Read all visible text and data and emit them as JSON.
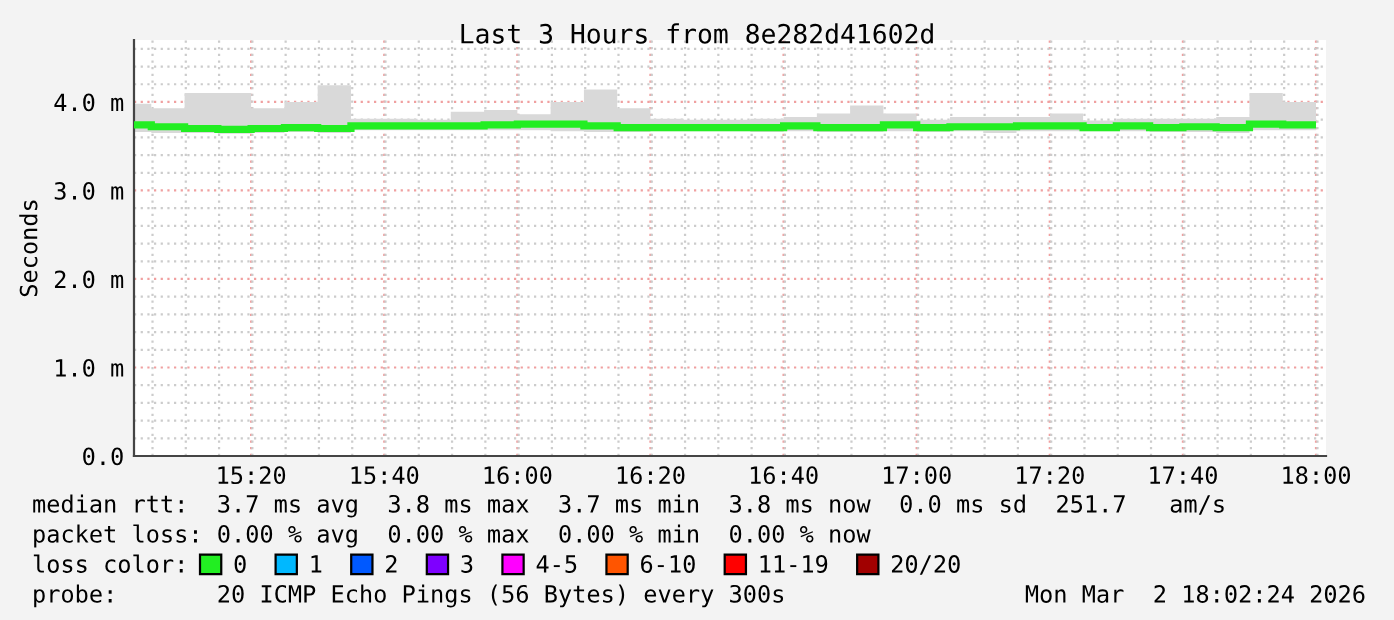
{
  "chart_data": {
    "type": "step",
    "title": "Last 3 Hours from 8e282d41602d",
    "ylabel": "Seconds",
    "x": [
      15.0833,
      15.1667,
      15.25,
      15.3333,
      15.4167,
      15.5,
      15.5833,
      15.6667,
      15.75,
      15.8333,
      15.9167,
      16.0,
      16.0833,
      16.1667,
      16.25,
      16.3333,
      16.4167,
      16.5,
      16.5833,
      16.6667,
      16.75,
      16.8333,
      16.9167,
      17.0,
      17.0833,
      17.1667,
      17.25,
      17.3333,
      17.4167,
      17.5,
      17.5833,
      17.6667,
      17.75,
      17.8333,
      17.9167,
      18.0
    ],
    "series": [
      {
        "name": "0",
        "color": "#22ee22",
        "values": [
          3.74,
          3.72,
          3.7,
          3.69,
          3.7,
          3.71,
          3.7,
          3.73,
          3.73,
          3.73,
          3.73,
          3.74,
          3.75,
          3.75,
          3.73,
          3.71,
          3.71,
          3.71,
          3.71,
          3.71,
          3.73,
          3.71,
          3.71,
          3.74,
          3.71,
          3.72,
          3.72,
          3.73,
          3.73,
          3.71,
          3.73,
          3.71,
          3.72,
          3.71,
          3.75,
          3.74
        ],
        "lower": [
          3.66,
          3.65,
          3.65,
          3.64,
          3.65,
          3.66,
          3.65,
          3.68,
          3.68,
          3.68,
          3.68,
          3.68,
          3.68,
          3.67,
          3.66,
          3.66,
          3.67,
          3.67,
          3.67,
          3.66,
          3.67,
          3.66,
          3.66,
          3.67,
          3.66,
          3.67,
          3.65,
          3.67,
          3.67,
          3.67,
          3.67,
          3.66,
          3.66,
          3.65,
          3.68,
          3.68
        ],
        "upper": [
          3.98,
          3.93,
          4.1,
          4.1,
          3.93,
          4.0,
          4.19,
          3.81,
          3.81,
          3.8,
          3.89,
          3.91,
          3.86,
          4.0,
          4.14,
          3.93,
          3.81,
          3.8,
          3.8,
          3.81,
          3.83,
          3.87,
          3.96,
          3.87,
          3.8,
          3.83,
          3.83,
          3.83,
          3.87,
          3.79,
          3.81,
          3.81,
          3.81,
          3.83,
          4.1,
          4.0
        ]
      },
      {
        "name": "1",
        "color": "#00b8ff",
        "values": [
          null,
          null,
          null,
          null,
          null,
          null,
          null,
          null,
          null,
          null,
          null,
          null,
          null,
          null,
          null,
          null,
          null,
          null,
          null,
          null,
          null,
          null,
          null,
          null,
          null,
          null,
          null,
          null,
          null,
          null,
          null,
          null,
          null,
          null,
          null,
          null
        ]
      },
      {
        "name": "2",
        "color": "#0059ff",
        "values": [
          null,
          null,
          null,
          null,
          null,
          null,
          null,
          null,
          null,
          null,
          null,
          null,
          null,
          null,
          null,
          null,
          null,
          null,
          null,
          null,
          null,
          null,
          null,
          null,
          null,
          null,
          null,
          null,
          null,
          null,
          null,
          null,
          null,
          null,
          null,
          null
        ]
      },
      {
        "name": "3",
        "color": "#7e00ff",
        "values": [
          null,
          null,
          null,
          null,
          null,
          null,
          null,
          null,
          null,
          null,
          null,
          null,
          null,
          null,
          null,
          null,
          null,
          null,
          null,
          null,
          null,
          null,
          null,
          null,
          null,
          null,
          null,
          null,
          null,
          null,
          null,
          null,
          null,
          null,
          null,
          null
        ]
      },
      {
        "name": "4-5",
        "color": "#ff00ff",
        "values": [
          null,
          null,
          null,
          null,
          null,
          null,
          null,
          null,
          null,
          null,
          null,
          null,
          null,
          null,
          null,
          null,
          null,
          null,
          null,
          null,
          null,
          null,
          null,
          null,
          null,
          null,
          null,
          null,
          null,
          null,
          null,
          null,
          null,
          null,
          null,
          null
        ]
      },
      {
        "name": "6-10",
        "color": "#ff5500",
        "values": [
          null,
          null,
          null,
          null,
          null,
          null,
          null,
          null,
          null,
          null,
          null,
          null,
          null,
          null,
          null,
          null,
          null,
          null,
          null,
          null,
          null,
          null,
          null,
          null,
          null,
          null,
          null,
          null,
          null,
          null,
          null,
          null,
          null,
          null,
          null,
          null
        ]
      },
      {
        "name": "11-19",
        "color": "#ff0000",
        "values": [
          null,
          null,
          null,
          null,
          null,
          null,
          null,
          null,
          null,
          null,
          null,
          null,
          null,
          null,
          null,
          null,
          null,
          null,
          null,
          null,
          null,
          null,
          null,
          null,
          null,
          null,
          null,
          null,
          null,
          null,
          null,
          null,
          null,
          null,
          null,
          null
        ]
      },
      {
        "name": "20/20",
        "color": "#a10000",
        "values": [
          null,
          null,
          null,
          null,
          null,
          null,
          null,
          null,
          null,
          null,
          null,
          null,
          null,
          null,
          null,
          null,
          null,
          null,
          null,
          null,
          null,
          null,
          null,
          null,
          null,
          null,
          null,
          null,
          null,
          null,
          null,
          null,
          null,
          null,
          null,
          null
        ]
      }
    ],
    "legend": "bottom",
    "legend_title": "loss color:",
    "xlim": [
      15.04,
      18.025
    ],
    "xticks": [
      {
        "value": 15.3333,
        "label": "15:20"
      },
      {
        "value": 15.6667,
        "label": "15:40"
      },
      {
        "value": 16.0,
        "label": "16:00"
      },
      {
        "value": 16.3333,
        "label": "16:20"
      },
      {
        "value": 16.6667,
        "label": "16:40"
      },
      {
        "value": 17.0,
        "label": "17:00"
      },
      {
        "value": 17.3333,
        "label": "17:20"
      },
      {
        "value": 17.6667,
        "label": "17:40"
      },
      {
        "value": 18.0,
        "label": "18:00"
      }
    ],
    "ylim": [
      0,
      4.7
    ],
    "yticks": [
      {
        "value": 0,
        "label": "0.0"
      },
      {
        "value": 1.0,
        "label": "1.0 m"
      },
      {
        "value": 2.0,
        "label": "2.0 m"
      },
      {
        "value": 3.0,
        "label": "3.0 m"
      },
      {
        "value": 4.0,
        "label": "4.0 m"
      }
    ],
    "grid": true,
    "annotations": [
      "median rtt:  3.7 ms avg  3.8 ms max  3.7 ms min  3.8 ms now  0.0 ms sd  251.7   am/s",
      "packet loss: 0.00 % avg  0.00 % max  0.00 % min  0.00 % now",
      "probe:       20 ICMP Echo Pings (56 Bytes) every 300s",
      "Mon Mar  2 18:02:24 2026"
    ]
  }
}
